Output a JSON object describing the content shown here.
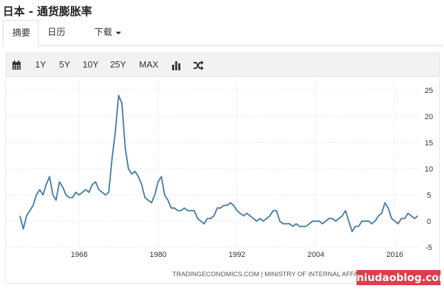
{
  "title": "日本 - 通货膨胀率",
  "tabs": [
    {
      "label": "摘要",
      "active": true
    },
    {
      "label": "日历",
      "active": false
    },
    {
      "label": "下载",
      "active": false,
      "dropdown": true
    }
  ],
  "toolbar": {
    "calendar_icon": "calendar-icon",
    "ranges": [
      "1Y",
      "5Y",
      "10Y",
      "25Y",
      "MAX"
    ],
    "chart_type_icon": "bar-chart-icon",
    "compare_icon": "shuffle-icon"
  },
  "source_text": "TRADINGECONOMICS.COM | MINISTRY OF INTERNAL AFFAIRS & COMMUNICATIONS",
  "watermark": "niudaoblog.com",
  "chart_data": {
    "type": "line",
    "title": "",
    "xlabel": "",
    "ylabel": "",
    "x_ticks": [
      "1968",
      "1980",
      "1992",
      "2004",
      "2016"
    ],
    "y_ticks": [
      25,
      20,
      15,
      10,
      5,
      0,
      -5
    ],
    "ylim": [
      -5,
      25
    ],
    "xlim": [
      1959,
      2019.5
    ],
    "grid": true,
    "y_axis_side": "right",
    "line_color": "#4a7fab",
    "series": [
      {
        "points": [
          [
            1959.0,
            1.0
          ],
          [
            1959.5,
            -1.5
          ],
          [
            1960.0,
            1.0
          ],
          [
            1960.5,
            2.0
          ],
          [
            1961.0,
            3.0
          ],
          [
            1961.5,
            5.0
          ],
          [
            1962.0,
            6.0
          ],
          [
            1962.5,
            5.0
          ],
          [
            1963.0,
            7.0
          ],
          [
            1963.5,
            8.5
          ],
          [
            1964.0,
            5.0
          ],
          [
            1964.5,
            4.0
          ],
          [
            1965.0,
            7.5
          ],
          [
            1965.5,
            6.5
          ],
          [
            1966.0,
            5.0
          ],
          [
            1966.5,
            4.5
          ],
          [
            1967.0,
            4.5
          ],
          [
            1967.5,
            5.5
          ],
          [
            1968.0,
            5.0
          ],
          [
            1968.5,
            5.5
          ],
          [
            1969.0,
            6.0
          ],
          [
            1969.5,
            5.5
          ],
          [
            1970.0,
            7.0
          ],
          [
            1970.5,
            7.5
          ],
          [
            1971.0,
            6.0
          ],
          [
            1971.5,
            5.5
          ],
          [
            1972.0,
            5.0
          ],
          [
            1972.5,
            5.5
          ],
          [
            1973.0,
            12.0
          ],
          [
            1973.5,
            17.0
          ],
          [
            1974.0,
            24.0
          ],
          [
            1974.5,
            22.5
          ],
          [
            1975.0,
            14.0
          ],
          [
            1975.5,
            10.0
          ],
          [
            1976.0,
            9.0
          ],
          [
            1976.5,
            9.5
          ],
          [
            1977.0,
            8.5
          ],
          [
            1977.5,
            7.0
          ],
          [
            1978.0,
            4.5
          ],
          [
            1978.5,
            4.0
          ],
          [
            1979.0,
            3.5
          ],
          [
            1979.5,
            5.0
          ],
          [
            1980.0,
            7.5
          ],
          [
            1980.5,
            8.5
          ],
          [
            1981.0,
            5.0
          ],
          [
            1981.5,
            4.0
          ],
          [
            1982.0,
            2.5
          ],
          [
            1982.5,
            2.5
          ],
          [
            1983.0,
            2.0
          ],
          [
            1983.5,
            2.0
          ],
          [
            1984.0,
            2.5
          ],
          [
            1984.5,
            2.0
          ],
          [
            1985.0,
            2.0
          ],
          [
            1985.5,
            2.0
          ],
          [
            1986.0,
            0.5
          ],
          [
            1986.5,
            0.0
          ],
          [
            1987.0,
            -0.5
          ],
          [
            1987.5,
            0.5
          ],
          [
            1988.0,
            0.5
          ],
          [
            1988.5,
            1.0
          ],
          [
            1989.0,
            2.5
          ],
          [
            1989.5,
            2.5
          ],
          [
            1990.0,
            3.0
          ],
          [
            1990.5,
            3.0
          ],
          [
            1991.0,
            3.5
          ],
          [
            1991.5,
            3.0
          ],
          [
            1992.0,
            2.0
          ],
          [
            1992.5,
            1.5
          ],
          [
            1993.0,
            1.0
          ],
          [
            1993.5,
            1.5
          ],
          [
            1994.0,
            1.0
          ],
          [
            1994.5,
            0.5
          ],
          [
            1995.0,
            0.0
          ],
          [
            1995.5,
            0.5
          ],
          [
            1996.0,
            0.0
          ],
          [
            1996.5,
            0.5
          ],
          [
            1997.0,
            1.0
          ],
          [
            1997.5,
            2.0
          ],
          [
            1998.0,
            2.0
          ],
          [
            1998.5,
            0.0
          ],
          [
            1999.0,
            -0.5
          ],
          [
            1999.5,
            -0.5
          ],
          [
            2000.0,
            -0.5
          ],
          [
            2000.5,
            -1.0
          ],
          [
            2001.0,
            -0.5
          ],
          [
            2001.5,
            -1.0
          ],
          [
            2002.0,
            -1.0
          ],
          [
            2002.5,
            -1.0
          ],
          [
            2003.0,
            -0.5
          ],
          [
            2003.5,
            0.0
          ],
          [
            2004.0,
            0.0
          ],
          [
            2004.5,
            0.0
          ],
          [
            2005.0,
            -0.5
          ],
          [
            2005.5,
            0.0
          ],
          [
            2006.0,
            0.5
          ],
          [
            2006.5,
            0.5
          ],
          [
            2007.0,
            0.0
          ],
          [
            2007.5,
            0.5
          ],
          [
            2008.0,
            1.0
          ],
          [
            2008.5,
            2.0
          ],
          [
            2009.0,
            0.0
          ],
          [
            2009.5,
            -2.0
          ],
          [
            2010.0,
            -1.0
          ],
          [
            2010.5,
            -1.0
          ],
          [
            2011.0,
            0.0
          ],
          [
            2011.5,
            0.0
          ],
          [
            2012.0,
            0.0
          ],
          [
            2012.5,
            -0.5
          ],
          [
            2013.0,
            0.0
          ],
          [
            2013.5,
            1.0
          ],
          [
            2014.0,
            1.5
          ],
          [
            2014.5,
            3.5
          ],
          [
            2015.0,
            2.5
          ],
          [
            2015.5,
            0.5
          ],
          [
            2016.0,
            0.0
          ],
          [
            2016.5,
            -0.5
          ],
          [
            2017.0,
            0.5
          ],
          [
            2017.5,
            0.5
          ],
          [
            2018.0,
            1.5
          ],
          [
            2018.5,
            1.0
          ],
          [
            2019.0,
            0.5
          ],
          [
            2019.5,
            1.0
          ]
        ]
      }
    ]
  }
}
